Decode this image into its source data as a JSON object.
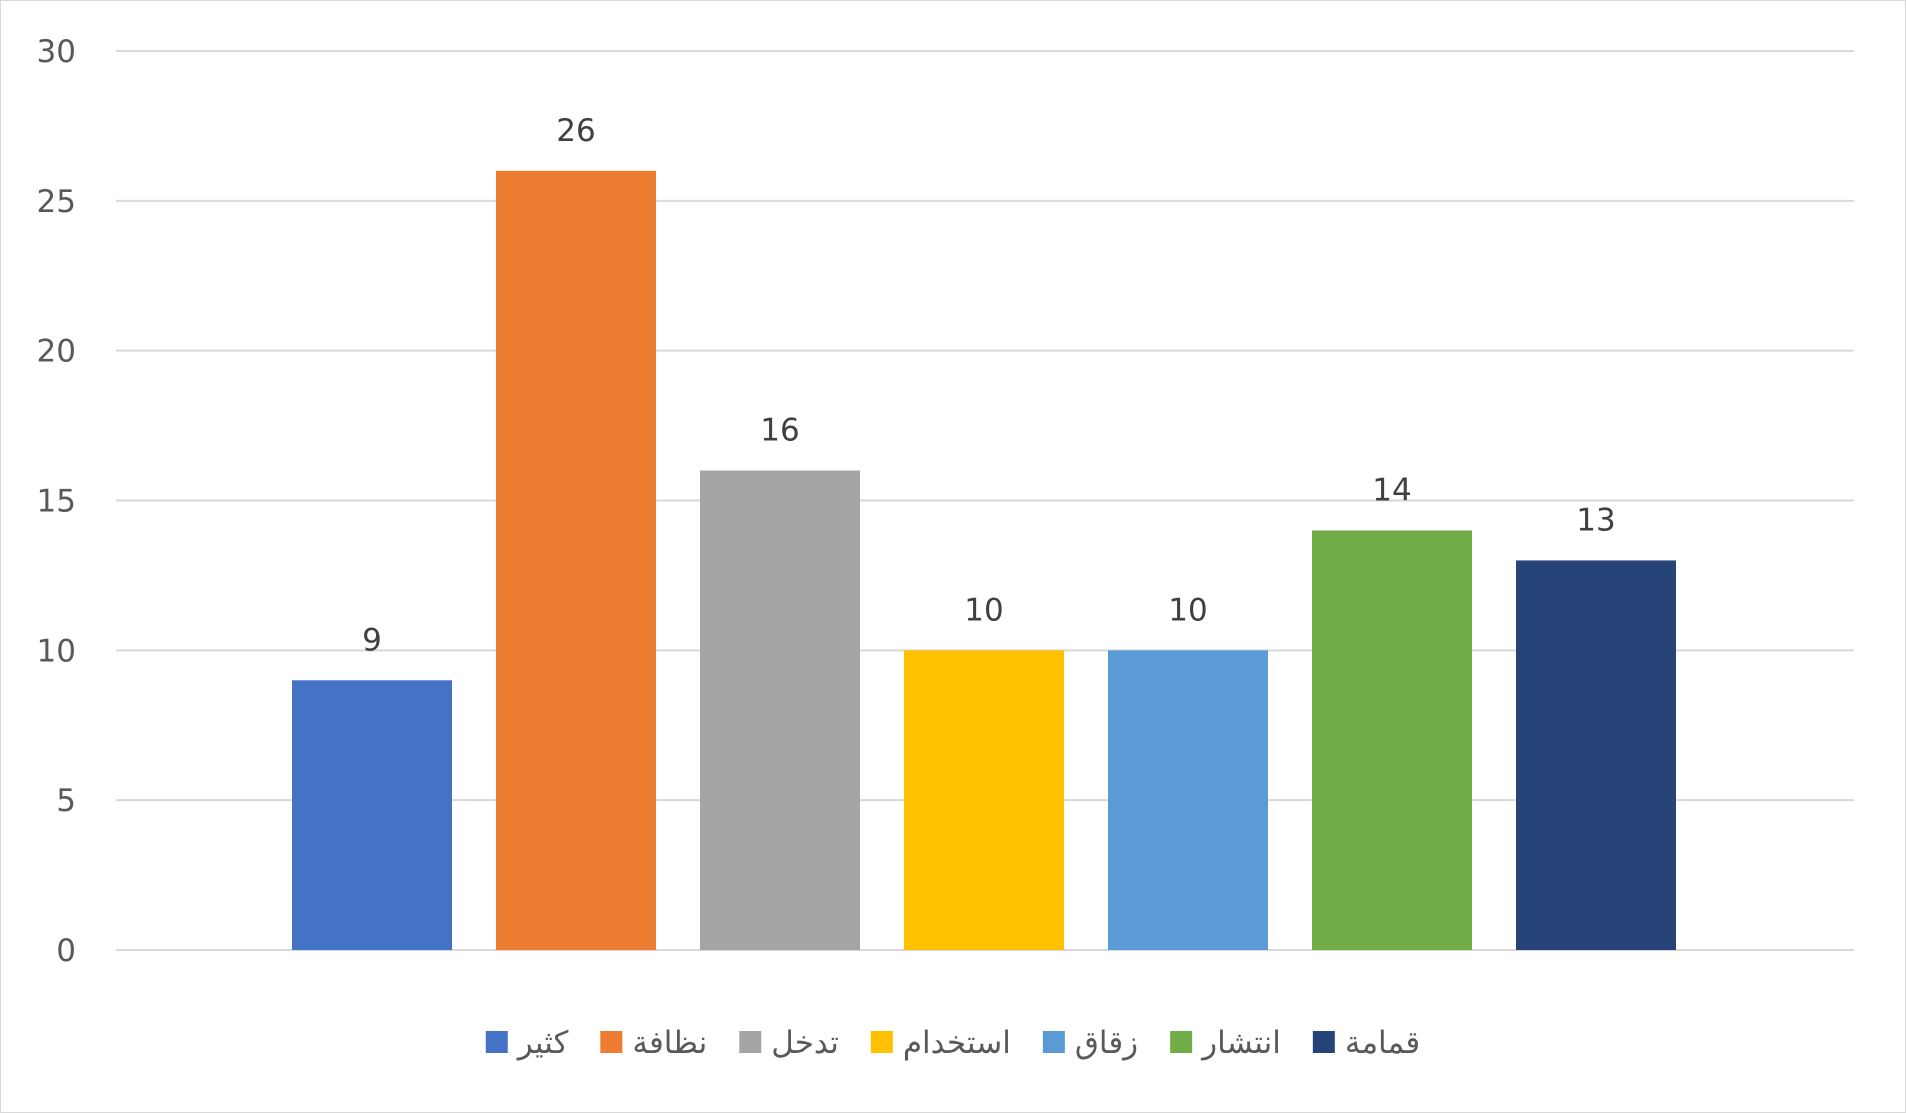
{
  "chart_data": {
    "type": "bar",
    "title": "",
    "xlabel": "",
    "ylabel": "",
    "categories": [
      "كثير",
      "نظافة",
      "تدخل",
      "استخدام",
      "زقاق",
      "انتشار",
      "قمامة"
    ],
    "values": [
      9,
      26,
      16,
      10,
      10,
      14,
      13
    ],
    "colors": [
      "#4472C4",
      "#ED7D31",
      "#A5A5A5",
      "#FFC000",
      "#5B9BD5",
      "#70AD47",
      "#264478"
    ],
    "ylim": [
      0,
      30
    ],
    "yticks": [
      0,
      5,
      10,
      15,
      20,
      25,
      30
    ],
    "grid": true,
    "legend_position": "bottom",
    "data_labels": true
  }
}
